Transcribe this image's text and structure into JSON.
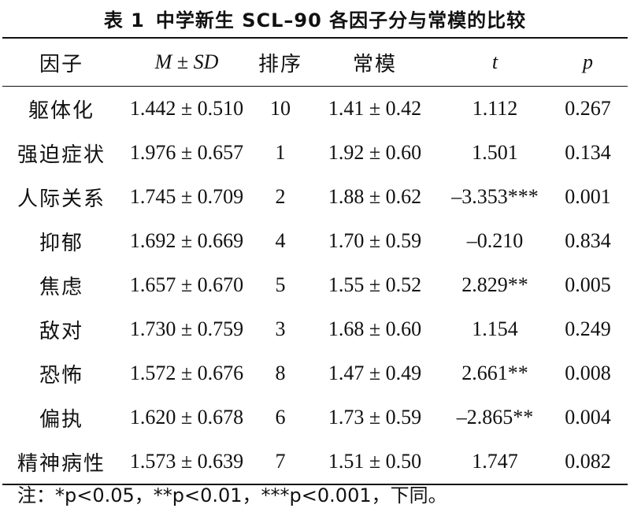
{
  "caption": {
    "number": "表 1",
    "title": "中学新生 SCL–90 各因子分与常模的比较"
  },
  "table": {
    "headers": {
      "factor": "因子",
      "msd": "M ± SD",
      "rank": "排序",
      "norm": "常模",
      "t": "t",
      "p": "p"
    },
    "rows": [
      {
        "factor": "躯体化",
        "msd": "1.442 ± 0.510",
        "rank": "10",
        "norm": "1.41 ± 0.42",
        "t": "1.112",
        "p": "0.267"
      },
      {
        "factor": "强迫症状",
        "msd": "1.976 ± 0.657",
        "rank": "1",
        "norm": "1.92 ± 0.60",
        "t": "1.501",
        "p": "0.134"
      },
      {
        "factor": "人际关系",
        "msd": "1.745 ± 0.709",
        "rank": "2",
        "norm": "1.88 ± 0.62",
        "t": "–3.353***",
        "p": "0.001"
      },
      {
        "factor": "抑郁",
        "msd": "1.692 ± 0.669",
        "rank": "4",
        "norm": "1.70 ± 0.59",
        "t": "–0.210",
        "p": "0.834"
      },
      {
        "factor": "焦虑",
        "msd": "1.657 ± 0.670",
        "rank": "5",
        "norm": "1.55 ± 0.52",
        "t": "2.829**",
        "p": "0.005"
      },
      {
        "factor": "敌对",
        "msd": "1.730 ± 0.759",
        "rank": "3",
        "norm": "1.68 ± 0.60",
        "t": "1.154",
        "p": "0.249"
      },
      {
        "factor": "恐怖",
        "msd": "1.572 ± 0.676",
        "rank": "8",
        "norm": "1.47 ± 0.49",
        "t": "2.661**",
        "p": "0.008"
      },
      {
        "factor": "偏执",
        "msd": "1.620 ± 0.678",
        "rank": "6",
        "norm": "1.73 ± 0.59",
        "t": "–2.865**",
        "p": "0.004"
      },
      {
        "factor": "精神病性",
        "msd": "1.573 ± 0.639",
        "rank": "7",
        "norm": "1.51 ± 0.50",
        "t": "1.747",
        "p": "0.082"
      }
    ]
  },
  "note": "注：*p<0.05，**p<0.01，***p<0.001，下同。"
}
